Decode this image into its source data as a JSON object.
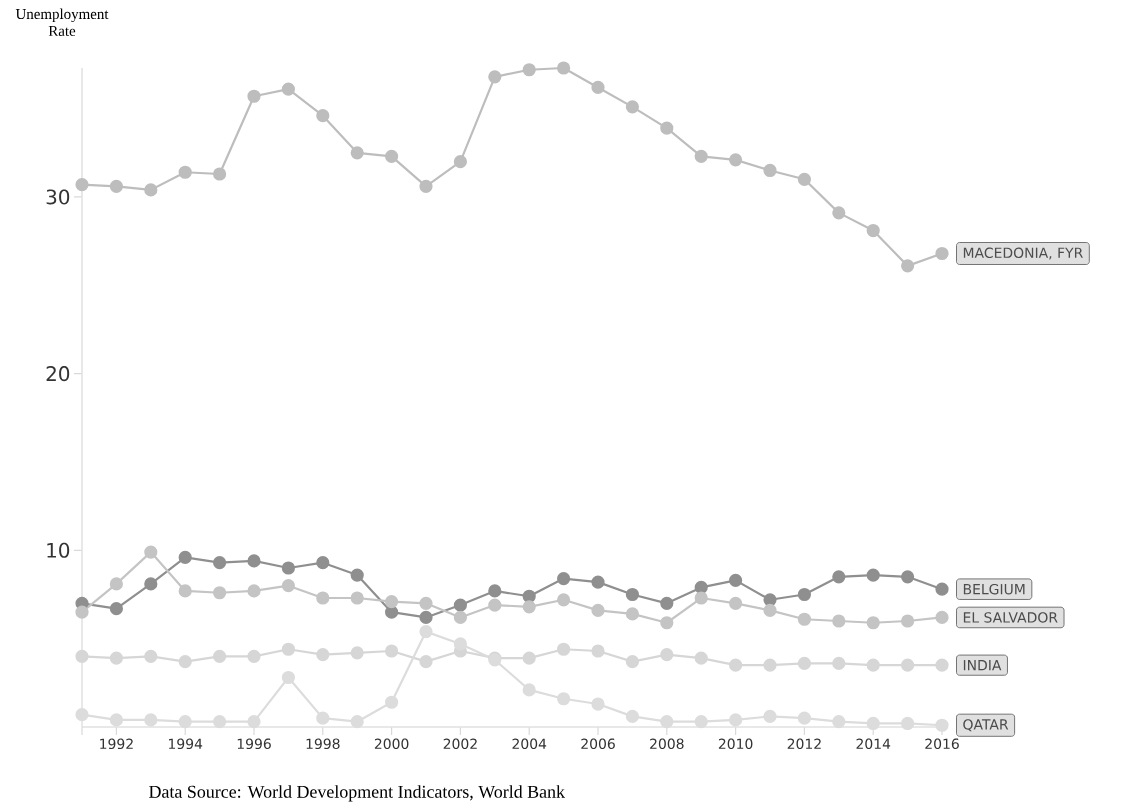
{
  "chart_data": {
    "type": "line",
    "ylabel": "Unemployment Rate",
    "annotations": [
      "Data Source: World Development Indicators, World Bank"
    ],
    "x": [
      1991,
      1992,
      1993,
      1994,
      1995,
      1996,
      1997,
      1998,
      1999,
      2000,
      2001,
      2002,
      2003,
      2004,
      2005,
      2006,
      2007,
      2008,
      2009,
      2010,
      2011,
      2012,
      2013,
      2014,
      2015,
      2016
    ],
    "xlim": [
      1991,
      2016
    ],
    "xticks": [
      {
        "value": 1991,
        "label": null
      },
      1992,
      1994,
      1996,
      1998,
      2000,
      2002,
      2004,
      2006,
      2008,
      2010,
      2012,
      2014,
      2016
    ],
    "ylim": [
      0,
      37.3
    ],
    "yticks": [
      10,
      20,
      30
    ],
    "marker": "circle",
    "series": [
      {
        "name": "MACEDONIA, FYR",
        "color": "#bdbdbd",
        "values": [
          30.7,
          30.6,
          30.4,
          31.4,
          31.3,
          35.7,
          36.1,
          34.6,
          32.5,
          32.3,
          30.6,
          32.0,
          36.8,
          37.2,
          37.3,
          36.2,
          35.1,
          33.9,
          32.3,
          32.1,
          31.5,
          31.0,
          29.1,
          28.1,
          26.1,
          26.8
        ]
      },
      {
        "name": "BELGIUM",
        "color": "#8f8f8f",
        "values": [
          7.0,
          6.7,
          8.1,
          9.6,
          9.3,
          9.4,
          9.0,
          9.3,
          8.6,
          6.5,
          6.2,
          6.9,
          7.7,
          7.4,
          8.4,
          8.2,
          7.5,
          7.0,
          7.9,
          8.3,
          7.2,
          7.5,
          8.5,
          8.6,
          8.5,
          7.8
        ]
      },
      {
        "name": "EL SALVADOR",
        "color": "#c4c4c4",
        "values": [
          6.5,
          8.1,
          9.9,
          7.7,
          7.6,
          7.7,
          8.0,
          7.3,
          7.3,
          7.1,
          7.0,
          6.2,
          6.9,
          6.8,
          7.2,
          6.6,
          6.4,
          5.9,
          7.3,
          7.0,
          6.6,
          6.1,
          6.0,
          5.9,
          6.0,
          6.2
        ]
      },
      {
        "name": "INDIA",
        "color": "#d6d6d6",
        "values": [
          4.0,
          3.9,
          4.0,
          3.7,
          4.0,
          4.0,
          4.4,
          4.1,
          4.2,
          4.3,
          3.7,
          4.3,
          3.9,
          3.9,
          4.4,
          4.3,
          3.7,
          4.1,
          3.9,
          3.5,
          3.5,
          3.6,
          3.6,
          3.5,
          3.5,
          3.5
        ]
      },
      {
        "name": "QATAR",
        "color": "#dcdcdc",
        "values": [
          0.7,
          0.4,
          0.4,
          0.3,
          0.3,
          0.3,
          2.8,
          0.5,
          0.3,
          1.4,
          5.4,
          4.7,
          3.8,
          2.1,
          1.6,
          1.3,
          0.6,
          0.3,
          0.3,
          0.4,
          0.6,
          0.5,
          0.3,
          0.2,
          0.2,
          0.1
        ]
      }
    ]
  }
}
